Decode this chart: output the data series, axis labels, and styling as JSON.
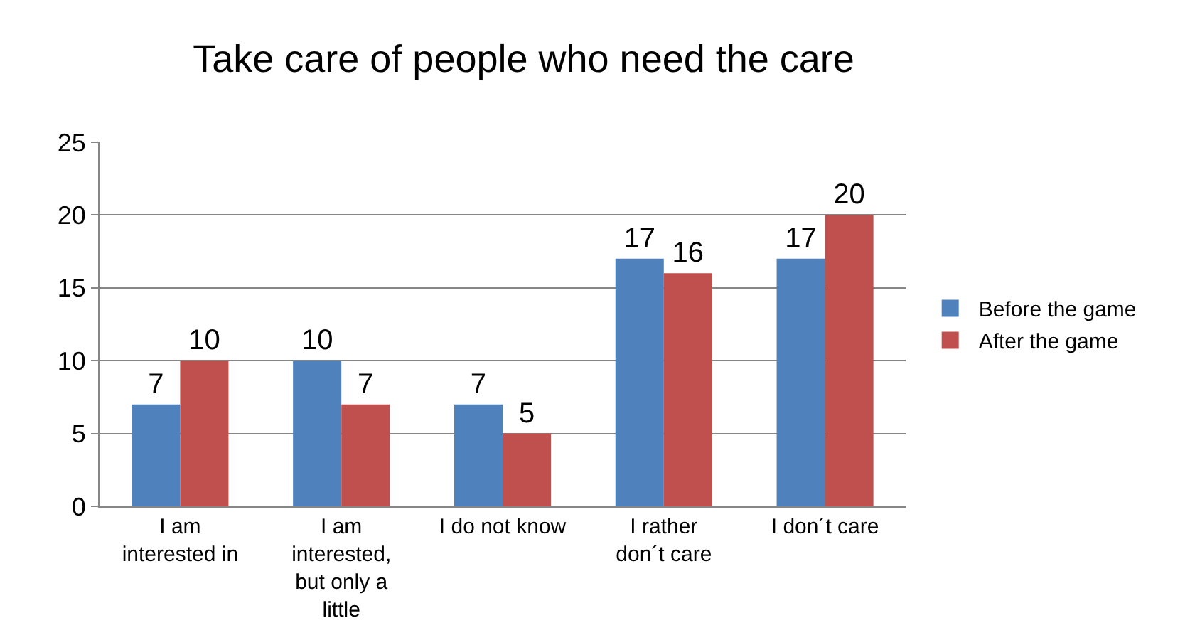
{
  "chart_data": {
    "type": "bar",
    "title": "Take care of people who need the care",
    "categories": [
      "I am interested in",
      "I am interested, but only a little",
      "I do not know",
      "I rather don´t care",
      "I don´t care"
    ],
    "series": [
      {
        "name": "Before the game",
        "color": "#4f81bd",
        "values": [
          7,
          10,
          7,
          17,
          17
        ]
      },
      {
        "name": "After the game",
        "color": "#c0504d",
        "values": [
          10,
          7,
          5,
          16,
          20
        ]
      }
    ],
    "ylim": [
      0,
      25
    ],
    "yticks": [
      0,
      5,
      10,
      15,
      20,
      25
    ],
    "grid": "y",
    "legend": "right",
    "data_labels": true
  }
}
